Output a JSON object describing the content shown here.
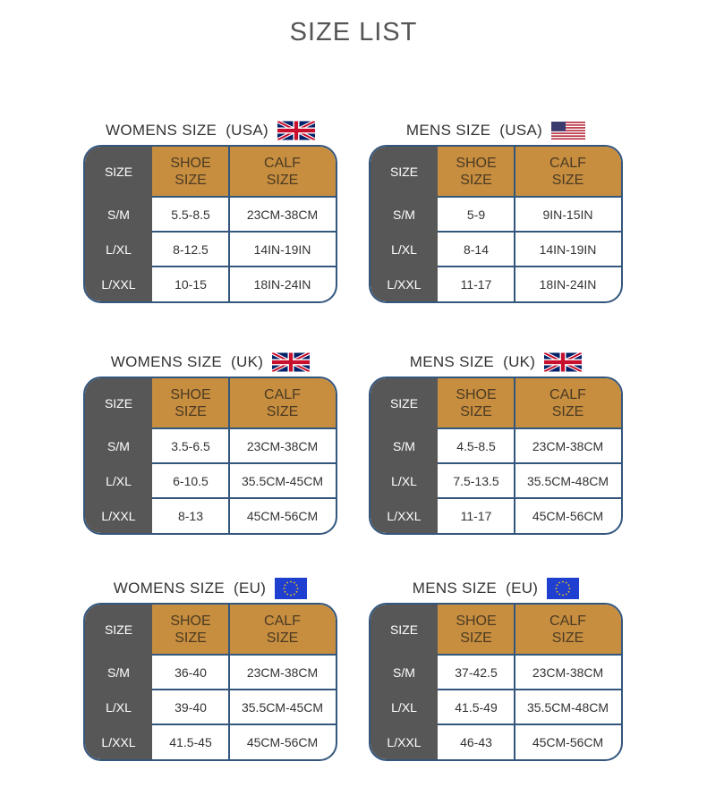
{
  "title": "SIZE LIST",
  "headers": {
    "size": "SIZE",
    "shoe": "SHOE\nSIZE",
    "calf": "CALF\nSIZE"
  },
  "colors": {
    "accent": "#c78e40",
    "border": "#33567d",
    "dark": "#575757"
  },
  "tables": [
    {
      "title": "WOMENS SIZE  (USA)",
      "flag": "uk-flag-icon",
      "rows": [
        {
          "size": "S/M",
          "shoe": "5.5-8.5",
          "calf": "23CM-38CM"
        },
        {
          "size": "L/XL",
          "shoe": "8-12.5",
          "calf": "14IN-19IN"
        },
        {
          "size": "L/XXL",
          "shoe": "10-15",
          "calf": "18IN-24IN"
        }
      ]
    },
    {
      "title": "MENS SIZE  (USA)",
      "flag": "us-flag-icon",
      "rows": [
        {
          "size": "S/M",
          "shoe": "5-9",
          "calf": "9IN-15IN"
        },
        {
          "size": "L/XL",
          "shoe": "8-14",
          "calf": "14IN-19IN"
        },
        {
          "size": "L/XXL",
          "shoe": "11-17",
          "calf": "18IN-24IN"
        }
      ]
    },
    {
      "title": "WOMENS SIZE  (UK)",
      "flag": "uk-flag-icon",
      "rows": [
        {
          "size": "S/M",
          "shoe": "3.5-6.5",
          "calf": "23CM-38CM"
        },
        {
          "size": "L/XL",
          "shoe": "6-10.5",
          "calf": "35.5CM-45CM"
        },
        {
          "size": "L/XXL",
          "shoe": "8-13",
          "calf": "45CM-56CM"
        }
      ]
    },
    {
      "title": "MENS SIZE  (UK)",
      "flag": "uk-flag-icon",
      "rows": [
        {
          "size": "S/M",
          "shoe": "4.5-8.5",
          "calf": "23CM-38CM"
        },
        {
          "size": "L/XL",
          "shoe": "7.5-13.5",
          "calf": "35.5CM-48CM"
        },
        {
          "size": "L/XXL",
          "shoe": "11-17",
          "calf": "45CM-56CM"
        }
      ]
    },
    {
      "title": "WOMENS SIZE  (EU)",
      "flag": "eu-flag-icon",
      "rows": [
        {
          "size": "S/M",
          "shoe": "36-40",
          "calf": "23CM-38CM"
        },
        {
          "size": "L/XL",
          "shoe": "39-40",
          "calf": "35.5CM-45CM"
        },
        {
          "size": "L/XXL",
          "shoe": "41.5-45",
          "calf": "45CM-56CM"
        }
      ]
    },
    {
      "title": "MENS SIZE  (EU)",
      "flag": "eu-flag-icon",
      "rows": [
        {
          "size": "S/M",
          "shoe": "37-42.5",
          "calf": "23CM-38CM"
        },
        {
          "size": "L/XL",
          "shoe": "41.5-49",
          "calf": "35.5CM-48CM"
        },
        {
          "size": "L/XXL",
          "shoe": "46-43",
          "calf": "45CM-56CM"
        }
      ]
    }
  ]
}
